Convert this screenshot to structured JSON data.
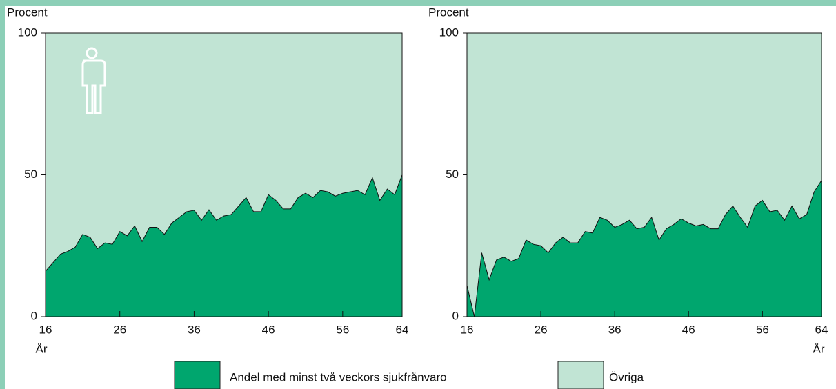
{
  "legend": [
    {
      "name": "Andel med minst två veckors sjukfrånvaro",
      "color": "#00a66e"
    },
    {
      "name": "Övriga",
      "color": "#c1e4d4"
    }
  ],
  "chart_data": [
    {
      "type": "area",
      "ylabel": "Procent",
      "xlabel": "År",
      "x": [
        16,
        17,
        18,
        19,
        20,
        21,
        22,
        23,
        24,
        25,
        26,
        27,
        28,
        29,
        30,
        31,
        32,
        33,
        34,
        35,
        36,
        37,
        38,
        39,
        40,
        41,
        42,
        43,
        44,
        45,
        46,
        47,
        48,
        49,
        50,
        51,
        52,
        53,
        54,
        55,
        56,
        57,
        58,
        59,
        60,
        61,
        62,
        63,
        64
      ],
      "values": [
        16,
        19,
        22,
        23,
        24.5,
        29,
        28,
        24,
        26,
        25.5,
        30,
        28.5,
        32,
        26.5,
        31.5,
        31.5,
        29,
        33,
        35,
        37,
        37.5,
        34,
        37.7,
        34,
        35.5,
        36,
        39,
        42,
        37,
        37,
        43,
        41,
        38,
        38,
        42,
        43.5,
        42,
        44.5,
        44,
        42.5,
        43.5,
        44,
        44.5,
        43,
        49,
        41,
        45,
        43,
        50
      ],
      "xlim": [
        16,
        64
      ],
      "xticks": [
        16,
        26,
        36,
        46,
        56,
        64
      ],
      "ylim": [
        0,
        100
      ],
      "yticks": [
        0,
        50,
        100
      ]
    },
    {
      "type": "area",
      "ylabel": "Procent",
      "xlabel": "År",
      "x": [
        16,
        17,
        18,
        19,
        20,
        21,
        22,
        23,
        24,
        25,
        26,
        27,
        28,
        29,
        30,
        31,
        32,
        33,
        34,
        35,
        36,
        37,
        38,
        39,
        40,
        41,
        42,
        43,
        44,
        45,
        46,
        47,
        48,
        49,
        50,
        51,
        52,
        53,
        54,
        55,
        56,
        57,
        58,
        59,
        60,
        61,
        62,
        63,
        64
      ],
      "values": [
        11,
        0,
        22.5,
        13,
        20,
        21,
        19.5,
        20.5,
        27,
        25.5,
        25,
        22.5,
        26,
        28,
        26,
        26,
        30,
        29.5,
        35,
        34,
        31.5,
        32.5,
        34,
        31,
        31.5,
        35,
        27,
        31,
        32.5,
        34.5,
        33,
        32,
        32.5,
        31,
        31,
        36,
        39,
        35,
        31.5,
        39,
        41,
        37,
        37.5,
        34,
        39,
        34.5,
        36,
        44,
        48
      ],
      "xlim": [
        16,
        64
      ],
      "xticks": [
        16,
        26,
        36,
        46,
        56,
        64
      ],
      "ylim": [
        0,
        100
      ],
      "yticks": [
        0,
        50,
        100
      ]
    }
  ]
}
